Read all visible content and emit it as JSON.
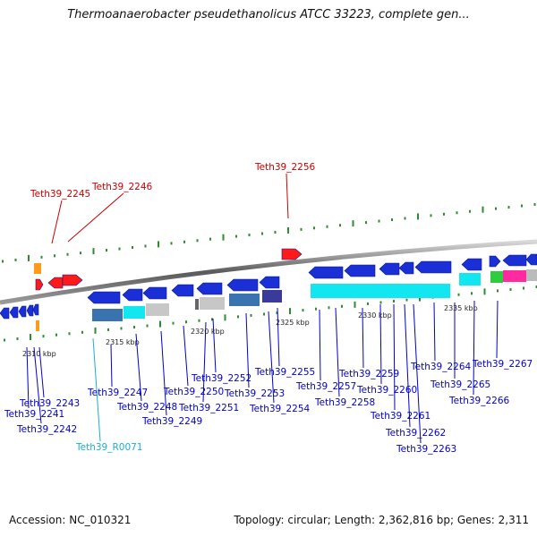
{
  "header": {
    "title": "Thermoanaerobacter pseudethanolicus ATCC 33223, complete gen..."
  },
  "footer": {
    "accession": "Accession: NC_010321",
    "summary": "Topology: circular; Length: 2,362,816 bp; Genes: 2,311"
  },
  "colors": {
    "red_label": "#cc0000",
    "blue_label": "#0000cc",
    "cyan_label": "#1ab0d0",
    "gene_blue": "#1a2fd6",
    "gene_red": "#ff1a1a",
    "gene_cyan": "#12e6f0"
  },
  "scale_labels": [
    "2310 kbp",
    "2315 kbp",
    "2320 kbp",
    "2325 kbp",
    "2330 kbp",
    "2335 kbp"
  ],
  "upper_labels": [
    "Teth39_2245",
    "Teth39_2246",
    "Teth39_2256"
  ],
  "lower_labels": [
    "Teth39_2243",
    "Teth39_2241",
    "Teth39_2242",
    "Teth39_2247",
    "Teth39_R0071",
    "Teth39_2248",
    "Teth39_2249",
    "Teth39_2250",
    "Teth39_2251",
    "Teth39_2252",
    "Teth39_2253",
    "Teth39_2254",
    "Teth39_2255",
    "Teth39_2257",
    "Teth39_2258",
    "Teth39_2259",
    "Teth39_2260",
    "Teth39_2261",
    "Teth39_2262",
    "Teth39_2263",
    "Teth39_2264",
    "Teth39_2265",
    "Teth39_2266",
    "Teth39_2267"
  ]
}
